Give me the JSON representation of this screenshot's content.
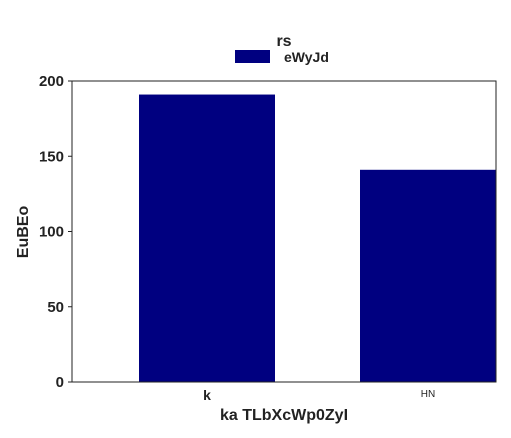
{
  "chart_data": {
    "type": "bar",
    "categories": [
      "k",
      "HN"
    ],
    "series": [
      {
        "name": "eWyJd",
        "values": [
          191,
          141
        ],
        "color": "#000080"
      }
    ],
    "title": "",
    "xlabel": "ka TLbXcWp0ZyI",
    "ylabel": "EuBEo",
    "ylim": [
      0,
      200
    ],
    "yticks": [
      0,
      50,
      100,
      150,
      200
    ],
    "grid": false,
    "legend": {
      "title": "rs",
      "placement": "top-center"
    }
  }
}
